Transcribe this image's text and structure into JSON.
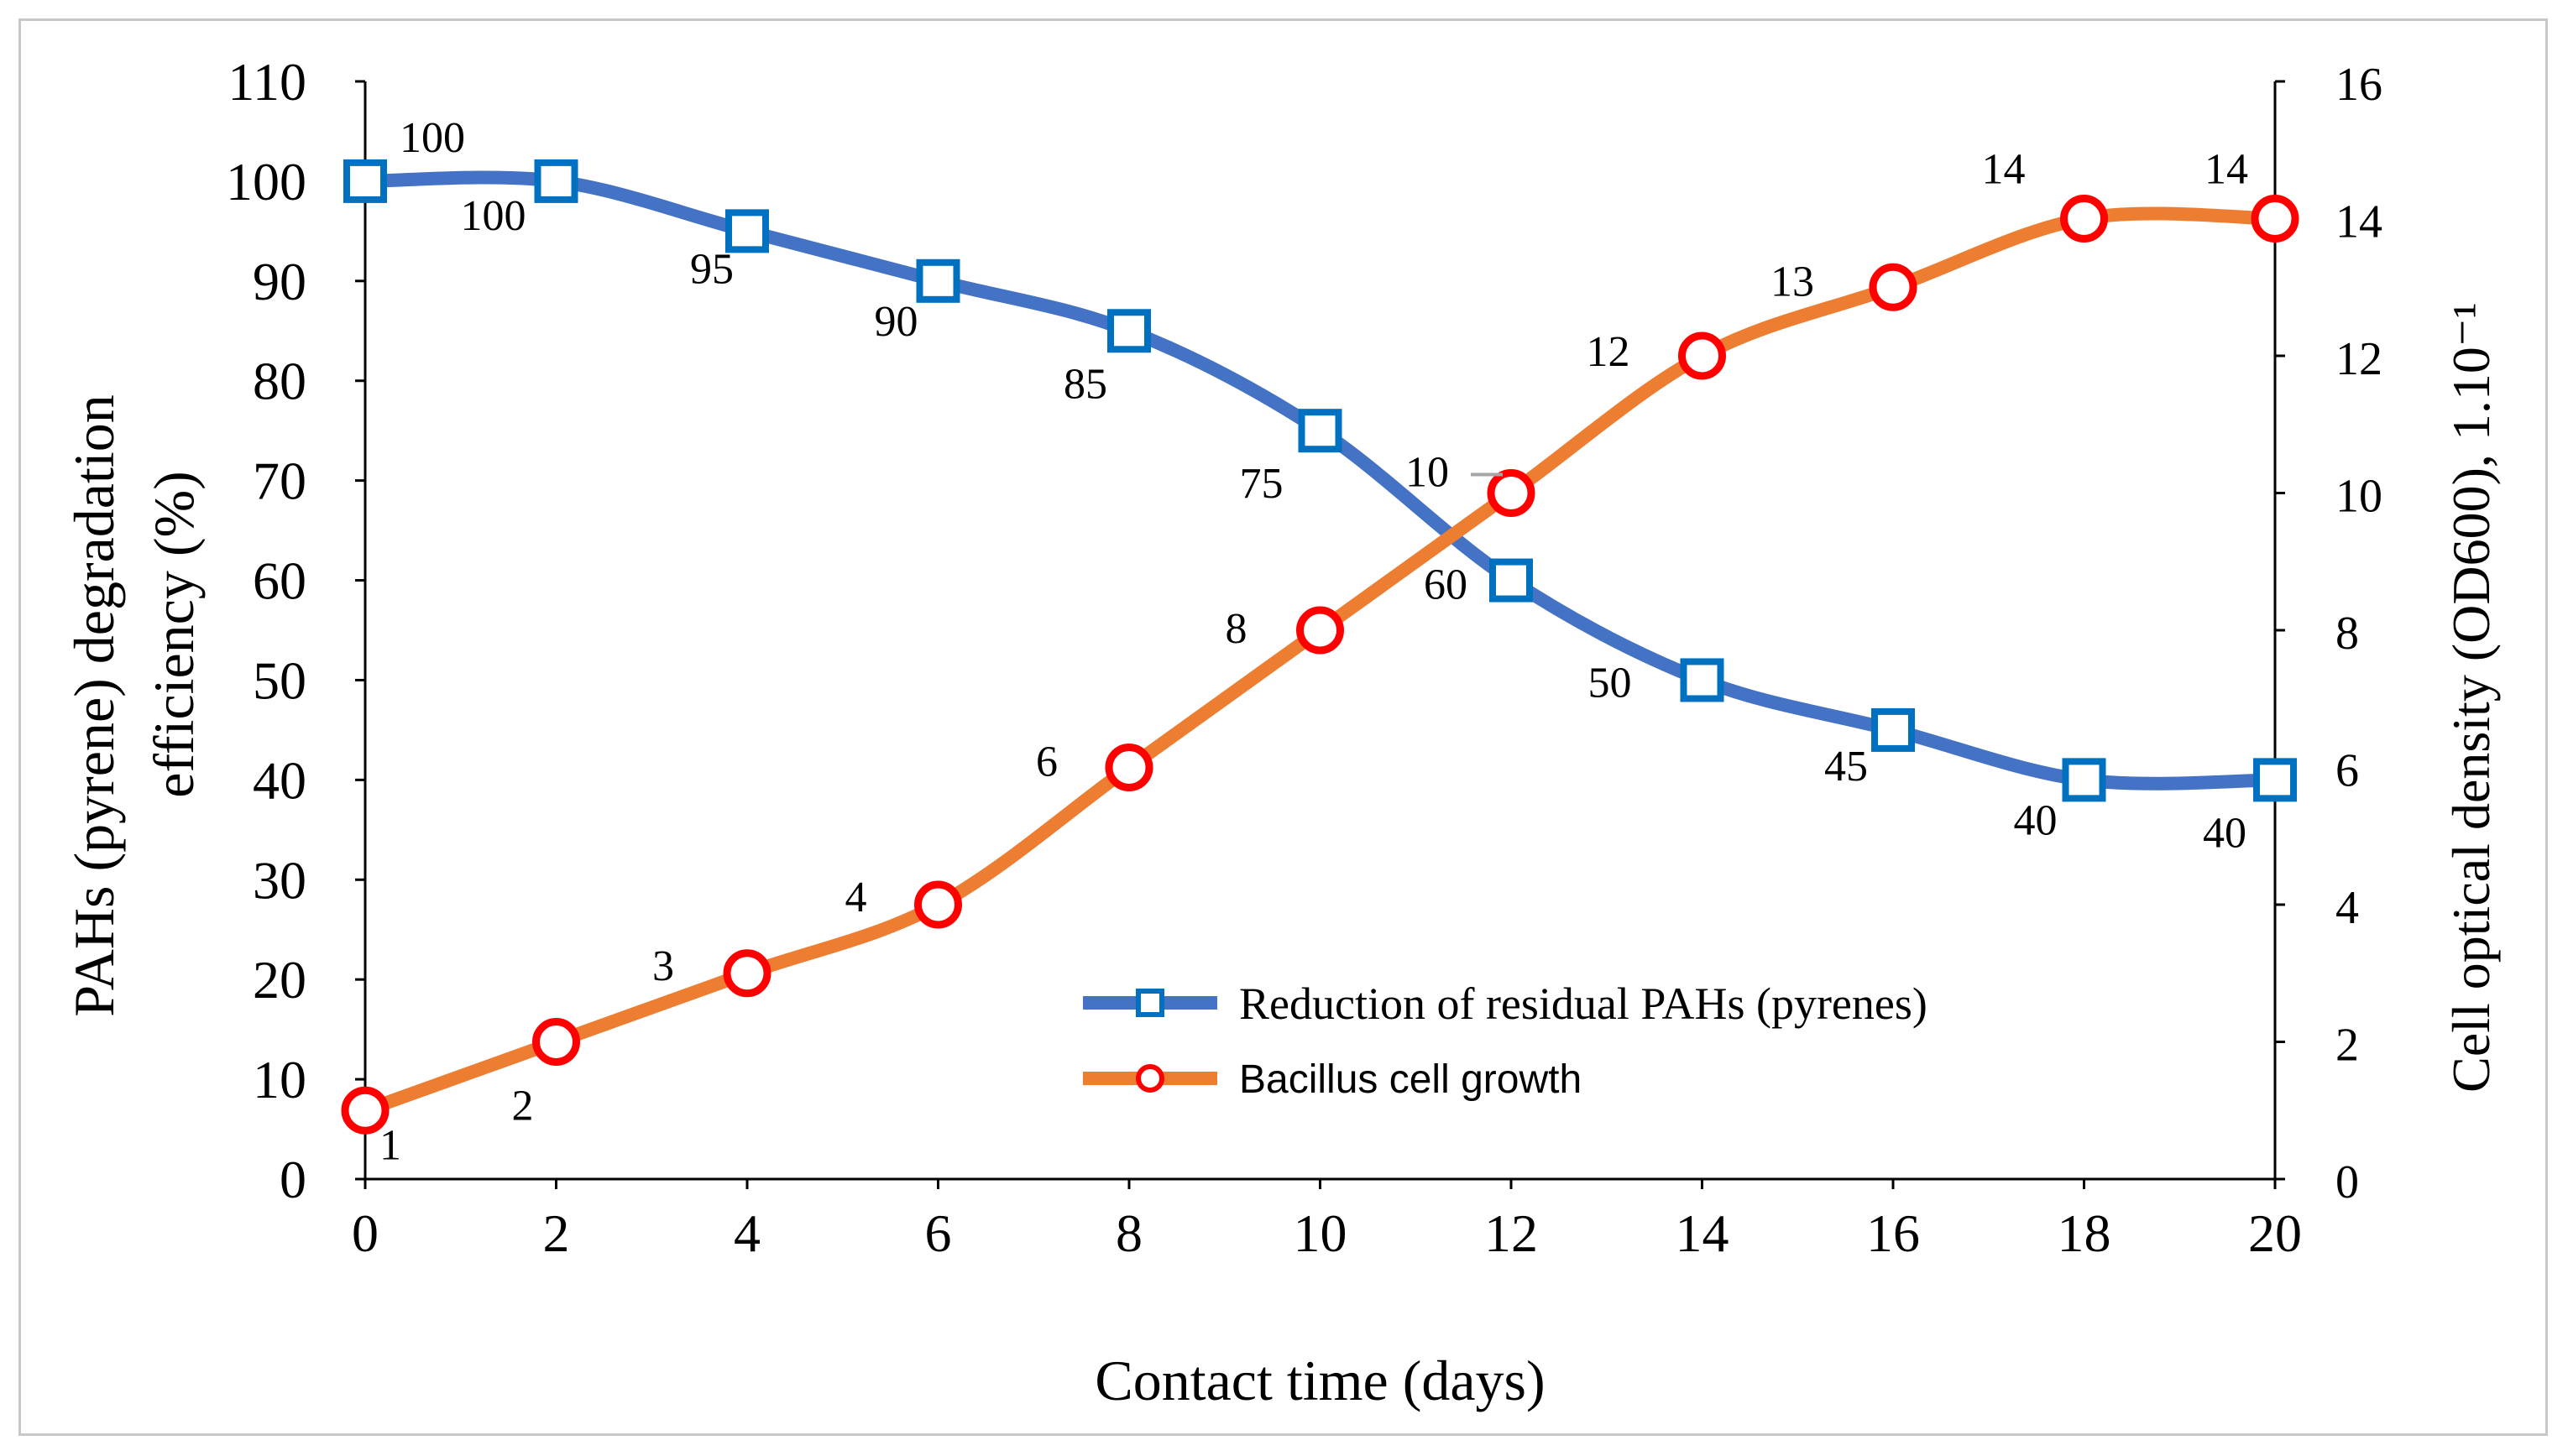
{
  "chart_data": {
    "type": "line",
    "title": "",
    "xlabel": "Contact time (days)",
    "ylabel": "PAHs (pyrene) degradation efficiency (%)",
    "ylabel_lines": [
      "PAHs (pyrene) degradation",
      "efficiency (%)"
    ],
    "y2label": "Cell optical density (OD600), 1.10⁻¹",
    "xlim": [
      0,
      20
    ],
    "ylim": [
      0,
      110
    ],
    "y2lim": [
      0,
      16
    ],
    "x_ticks": [
      0,
      2,
      4,
      6,
      8,
      10,
      12,
      14,
      16,
      18,
      20
    ],
    "y_ticks": [
      0,
      10,
      20,
      30,
      40,
      50,
      60,
      70,
      80,
      90,
      100,
      110
    ],
    "y2_ticks": [
      0,
      2,
      4,
      6,
      8,
      10,
      12,
      14,
      16
    ],
    "x": [
      0,
      2,
      4,
      6,
      8,
      10,
      12,
      14,
      16,
      18,
      20
    ],
    "legend_position": "center-right",
    "series": [
      {
        "name": "Reduction of residual PAHs (pyrenes)",
        "axis": "left",
        "marker": "square",
        "color": "#4472C4",
        "marker_color": "#0070C0",
        "values": [
          100,
          100,
          95,
          90,
          85,
          75,
          60,
          50,
          45,
          40,
          40
        ],
        "labels": [
          "100",
          "100",
          "95",
          "90",
          "85",
          "75",
          "60",
          "50",
          "45",
          "40",
          "40"
        ]
      },
      {
        "name": "Bacillus cell growth",
        "axis": "right",
        "marker": "circle",
        "color": "#ED7D31",
        "marker_color": "#FF0000",
        "values": [
          1,
          2,
          3,
          4,
          6,
          8,
          10,
          12,
          13,
          14,
          14
        ],
        "labels": [
          "1",
          "2",
          "3",
          "4",
          "6",
          "8",
          "10",
          "12",
          "13",
          "14",
          "14"
        ]
      }
    ]
  }
}
